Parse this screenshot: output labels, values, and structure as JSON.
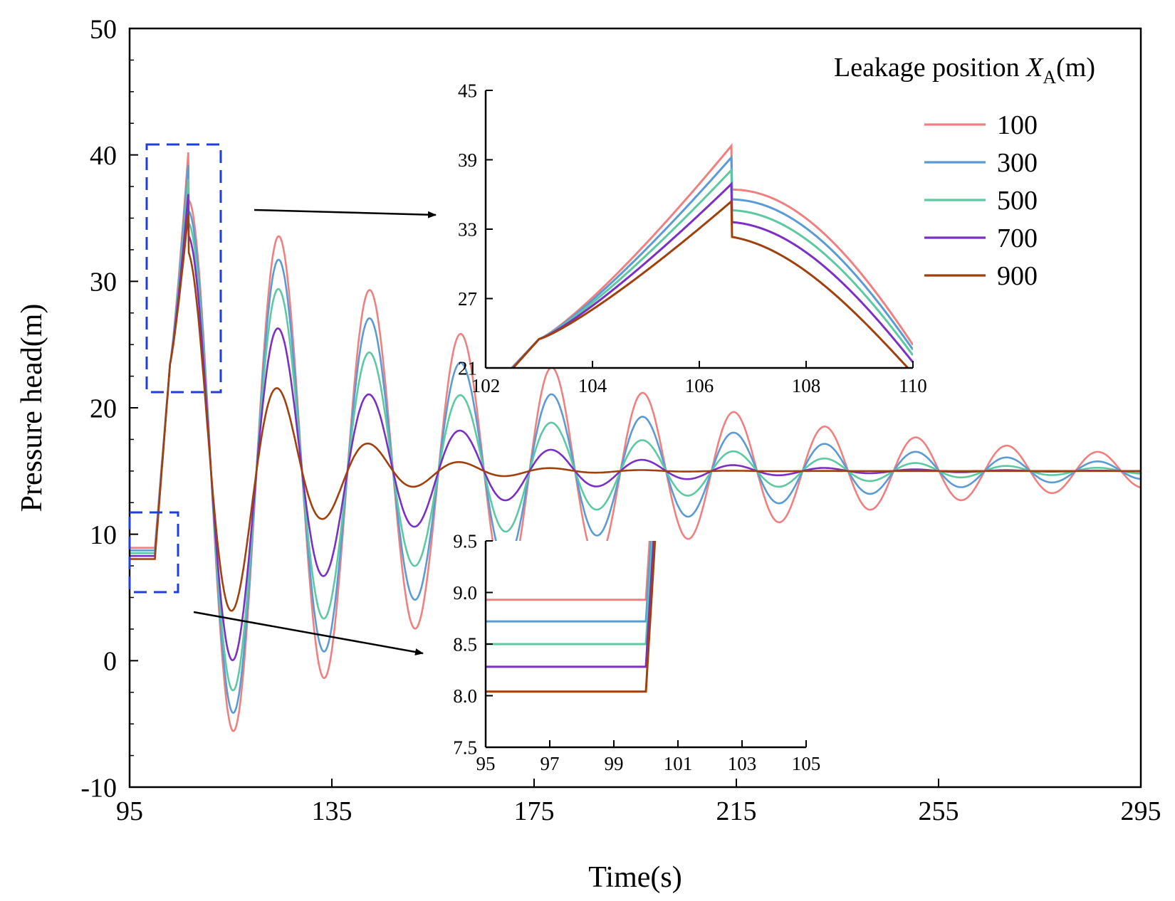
{
  "chart_data": {
    "type": "line",
    "xlabel": "Time(s)",
    "ylabel": "Pressure head(m)",
    "xlim": [
      95,
      295
    ],
    "ylim": [
      -10,
      50
    ],
    "xticks": [
      "95",
      "135",
      "175",
      "215",
      "255",
      "295"
    ],
    "yticks": [
      "-10",
      "0",
      "10",
      "20",
      "30",
      "40",
      "50"
    ],
    "legend": {
      "title_prefix": "Leakage position ",
      "title_var": "X",
      "title_sub": "A",
      "title_suffix": "(m)",
      "position": "top-right"
    },
    "series": [
      {
        "name": "100",
        "color": "#f08080",
        "initial": 8.93,
        "peak": 40.2,
        "damp": 1.0
      },
      {
        "name": "300",
        "color": "#5b9bd5",
        "initial": 8.72,
        "peak": 39.2,
        "damp": 0.8
      },
      {
        "name": "500",
        "color": "#5cc9a0",
        "initial": 8.5,
        "peak": 38.1,
        "damp": 0.6
      },
      {
        "name": "700",
        "color": "#7b2fc4",
        "initial": 8.28,
        "peak": 36.9,
        "damp": 0.4
      },
      {
        "name": "900",
        "color": "#a0410d",
        "initial": 8.04,
        "peak": 35.4,
        "damp": 0.2
      }
    ],
    "steady_value": 15,
    "transient_start": 100,
    "peak_time": 106.6,
    "insets": [
      {
        "name": "peak-zoom",
        "xlim": [
          102,
          110
        ],
        "ylim": [
          21,
          45
        ],
        "xticks": [
          "102",
          "104",
          "106",
          "108",
          "110"
        ],
        "yticks": [
          "21",
          "27",
          "33",
          "39",
          "45"
        ]
      },
      {
        "name": "initial-zoom",
        "xlim": [
          95,
          105
        ],
        "ylim": [
          7.5,
          9.5
        ],
        "xticks": [
          "95",
          "97",
          "99",
          "101",
          "103",
          "105"
        ],
        "yticks": [
          "7.5",
          "8.0",
          "8.5",
          "9.0",
          "9.5"
        ]
      }
    ]
  }
}
